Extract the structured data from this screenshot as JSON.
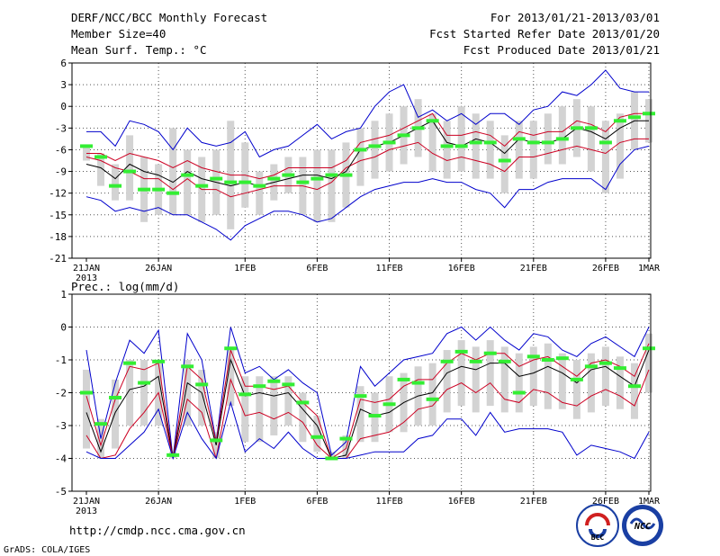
{
  "header": {
    "title_left": "DERF/NCC/BCC Monthly Forecast",
    "member_size": "Member Size=40",
    "variable": "Mean Surf. Temp.: °C",
    "title_right": "For 2013/01/21-2013/03/01",
    "started_refer": "Fcst Started Refer Date 2013/01/20",
    "produced": "Fcst Produced Date 2013/01/21"
  },
  "footer": {
    "url": "http://cmdp.ncc.cma.gov.cn",
    "grads": "GrADS: COLA/IGES",
    "logo_bcc": "BCC",
    "logo_ncc": "NCC"
  },
  "colors": {
    "envelope": "#0000cc",
    "quartile": "#cc0022",
    "median": "#000000",
    "box": "#d3d3d3",
    "obs": "#33ee33",
    "grid": "#555555"
  },
  "chart_data": [
    {
      "type": "line",
      "name": "temperature",
      "title": "",
      "xlabel": "",
      "ylabel": "Mean Surf. Temp.: °C",
      "ylim": [
        -21,
        7
      ],
      "yticks": [
        6,
        3,
        0,
        -3,
        -6,
        -9,
        -12,
        -15,
        -18,
        -21
      ],
      "ytick_labels": [
        "6",
        "3",
        "0",
        "-3",
        "-6",
        "-9",
        "-12",
        "-15",
        "-18",
        "-21"
      ],
      "xticks": [
        {
          "day": 0,
          "label": "21JAN",
          "sub": "2013"
        },
        {
          "day": 5,
          "label": "26JAN"
        },
        {
          "day": 11,
          "label": "1FEB"
        },
        {
          "day": 16,
          "label": "6FEB"
        },
        {
          "day": 21,
          "label": "11FEB"
        },
        {
          "day": 26,
          "label": "16FEB"
        },
        {
          "day": 31,
          "label": "21FEB"
        },
        {
          "day": 36,
          "label": "26FEB"
        },
        {
          "day": 39,
          "label": "1MAR"
        }
      ],
      "series": [
        {
          "name": "max",
          "values": [
            -12.5,
            -13,
            -14.5,
            -14,
            -14.5,
            -14,
            -15,
            -15,
            -16,
            -17,
            -18.5,
            -16.5,
            -15.5,
            -14.5,
            -14.5,
            -15,
            -16,
            -15.5,
            -14,
            -12.5,
            -11.5,
            -11,
            -10.5,
            -10.5,
            -10,
            -10.5,
            -10.5,
            -11.5,
            -12,
            -14,
            -11.5,
            -11.5,
            -10.5,
            -10,
            -10,
            -10,
            -11.5,
            -8,
            -6,
            -5.5
          ]
        },
        {
          "name": "upper_quartile",
          "values": [
            -7,
            -7.5,
            -8.5,
            -9,
            -10,
            -10,
            -11.5,
            -10,
            -11.5,
            -11.5,
            -12.5,
            -12,
            -11.5,
            -11,
            -11,
            -11,
            -11.5,
            -10.5,
            -8.5,
            -7.5,
            -7,
            -6,
            -5.5,
            -5,
            -6.5,
            -7.5,
            -7,
            -7.5,
            -8,
            -9,
            -7,
            -7,
            -6.5,
            -6,
            -5.5,
            -6,
            -6.5,
            -5,
            -4.5,
            -4.5
          ]
        },
        {
          "name": "median",
          "values": [
            -8,
            -8.5,
            -10,
            -8,
            -9,
            -9.5,
            -10.5,
            -9,
            -10,
            -10.5,
            -11,
            -10.5,
            -11,
            -10.5,
            -10,
            -9.5,
            -9.5,
            -10,
            -9,
            -6,
            -5.5,
            -5,
            -4,
            -3,
            -2,
            -5,
            -5.5,
            -4.5,
            -5,
            -6.5,
            -4.5,
            -5,
            -5,
            -4.5,
            -3,
            -3.5,
            -4.5,
            -3,
            -2,
            -2
          ]
        },
        {
          "name": "lower_quartile",
          "values": [
            -6.5,
            -6.5,
            -7.5,
            -6.5,
            -7,
            -7.5,
            -8.5,
            -7.5,
            -8.5,
            -9,
            -9.5,
            -9.5,
            -10,
            -9.5,
            -8.5,
            -8.5,
            -8.5,
            -8.5,
            -7.5,
            -5,
            -4.5,
            -4,
            -3,
            -2,
            -1,
            -4,
            -4,
            -3.5,
            -4,
            -5.5,
            -3.5,
            -4,
            -3.5,
            -3.5,
            -2,
            -2.5,
            -3.5,
            -1.5,
            -1,
            -1
          ]
        },
        {
          "name": "min",
          "values": [
            -3.5,
            -3.5,
            -5.5,
            -2,
            -2.5,
            -3.5,
            -6,
            -3,
            -5,
            -5.5,
            -5,
            -3.5,
            -7,
            -6,
            -5.5,
            -4,
            -2.5,
            -4.5,
            -3.5,
            -3,
            0,
            2,
            3,
            -1.5,
            -0.5,
            -2,
            -1,
            -2.5,
            -1,
            -1,
            -2.5,
            -0.5,
            0,
            2,
            1.5,
            3,
            5,
            2.5,
            2,
            2
          ]
        }
      ],
      "boxes": [
        {
          "lo": -7.5,
          "hi": -5.5
        },
        {
          "lo": -11,
          "hi": -6.5
        },
        {
          "lo": -13,
          "hi": -8
        },
        {
          "lo": -13,
          "hi": -4
        },
        {
          "lo": -16,
          "hi": -7
        },
        {
          "lo": -15,
          "hi": -8
        },
        {
          "lo": -15,
          "hi": -3
        },
        {
          "lo": -15,
          "hi": -6
        },
        {
          "lo": -16,
          "hi": -7
        },
        {
          "lo": -15,
          "hi": -6
        },
        {
          "lo": -17,
          "hi": -2
        },
        {
          "lo": -14,
          "hi": -5
        },
        {
          "lo": -15,
          "hi": -9
        },
        {
          "lo": -13,
          "hi": -8
        },
        {
          "lo": -12,
          "hi": -7
        },
        {
          "lo": -15,
          "hi": -7
        },
        {
          "lo": -16,
          "hi": -6
        },
        {
          "lo": -16,
          "hi": -6
        },
        {
          "lo": -14,
          "hi": -5
        },
        {
          "lo": -11,
          "hi": -3
        },
        {
          "lo": -10,
          "hi": -2
        },
        {
          "lo": -9,
          "hi": -1
        },
        {
          "lo": -8,
          "hi": 0
        },
        {
          "lo": -7,
          "hi": 1
        },
        {
          "lo": -9,
          "hi": -1
        },
        {
          "lo": -10,
          "hi": -2
        },
        {
          "lo": -9,
          "hi": 0
        },
        {
          "lo": -10,
          "hi": -1
        },
        {
          "lo": -10,
          "hi": -2
        },
        {
          "lo": -12,
          "hi": -4
        },
        {
          "lo": -10,
          "hi": -2
        },
        {
          "lo": -10,
          "hi": -2
        },
        {
          "lo": -8,
          "hi": -1
        },
        {
          "lo": -8,
          "hi": 0
        },
        {
          "lo": -7,
          "hi": 1
        },
        {
          "lo": -9,
          "hi": 0
        },
        {
          "lo": -12,
          "hi": -2
        },
        {
          "lo": -10,
          "hi": -1
        },
        {
          "lo": -6,
          "hi": 2
        },
        {
          "lo": -5,
          "hi": 1
        }
      ],
      "obs": [
        -5.5,
        -7,
        -11,
        -9,
        -11.5,
        -11.5,
        -12,
        -9.5,
        -11,
        -10,
        -10.5,
        -10.5,
        -11,
        -10,
        -9.5,
        -10.5,
        -10,
        -9.5,
        -9.5,
        -6,
        -5.5,
        -5,
        -4,
        -3,
        -2,
        -5.5,
        -5.5,
        -5,
        -5,
        -7.5,
        -4.5,
        -5,
        -5,
        -4.5,
        -3,
        -3,
        -5,
        -2,
        -1.5,
        -1
      ]
    },
    {
      "type": "line",
      "name": "precipitation",
      "title": "",
      "xlabel": "",
      "ylabel": "Prec.: log(mm/d)",
      "ylim": [
        -5,
        1
      ],
      "yticks": [
        1,
        0,
        -1,
        -2,
        -3,
        -4,
        -5
      ],
      "ytick_labels": [
        "1",
        "0",
        "-1",
        "-2",
        "-3",
        "-4",
        "-5"
      ],
      "xticks": [
        {
          "day": 0,
          "label": "21JAN",
          "sub": "2013"
        },
        {
          "day": 5,
          "label": "26JAN"
        },
        {
          "day": 11,
          "label": "1FEB"
        },
        {
          "day": 16,
          "label": "6FEB"
        },
        {
          "day": 21,
          "label": "11FEB"
        },
        {
          "day": 26,
          "label": "16FEB"
        },
        {
          "day": 31,
          "label": "21FEB"
        },
        {
          "day": 36,
          "label": "26FEB"
        },
        {
          "day": 39,
          "label": "1MAR"
        }
      ],
      "series": [
        {
          "name": "max",
          "values": [
            -0.7,
            -3.4,
            -1.7,
            -0.4,
            -0.8,
            -0.1,
            -4,
            -0.2,
            -1,
            -3.5,
            0,
            -1.4,
            -1.2,
            -1.6,
            -1.3,
            -1.7,
            -2,
            -3.9,
            -3.5,
            -1.2,
            -1.8,
            -1.4,
            -1,
            -0.9,
            -0.8,
            -0.2,
            0,
            -0.4,
            0,
            -0.4,
            -0.7,
            -0.2,
            -0.3,
            -0.7,
            -0.9,
            -0.5,
            -0.3,
            -0.6,
            -0.9,
            0
          ]
        },
        {
          "name": "upper_quartile",
          "values": [
            -2.1,
            -3.6,
            -2.2,
            -1.2,
            -1.3,
            -1.1,
            -4,
            -1.2,
            -1.6,
            -3.5,
            -0.7,
            -1.8,
            -1.8,
            -1.9,
            -1.8,
            -2.3,
            -2.7,
            -4,
            -3.7,
            -2.2,
            -2.3,
            -2.2,
            -1.8,
            -1.6,
            -1.6,
            -1.1,
            -0.8,
            -1,
            -0.8,
            -0.8,
            -1.2,
            -1,
            -0.9,
            -1.2,
            -1.5,
            -1.1,
            -1,
            -1.2,
            -1.5,
            -0.5
          ]
        },
        {
          "name": "median",
          "values": [
            -2.6,
            -3.8,
            -2.6,
            -1.9,
            -1.8,
            -1.5,
            -4,
            -1.7,
            -2,
            -3.6,
            -1,
            -2.1,
            -2,
            -2.1,
            -2,
            -2.5,
            -3,
            -4,
            -3.9,
            -2.5,
            -2.7,
            -2.6,
            -2.3,
            -2.1,
            -2,
            -1.4,
            -1.2,
            -1.3,
            -1.1,
            -1.1,
            -1.5,
            -1.4,
            -1.2,
            -1.4,
            -1.7,
            -1.3,
            -1.2,
            -1.5,
            -1.8,
            -0.7
          ]
        },
        {
          "name": "lower_quartile",
          "values": [
            -3.3,
            -4,
            -3.9,
            -3.1,
            -2.6,
            -2,
            -4,
            -2.2,
            -2.6,
            -4,
            -1.6,
            -2.7,
            -2.6,
            -2.8,
            -2.6,
            -2.9,
            -3.6,
            -4,
            -4,
            -3.4,
            -3.3,
            -3.2,
            -2.9,
            -2.5,
            -2.4,
            -1.9,
            -1.7,
            -2,
            -1.7,
            -2.2,
            -2.3,
            -1.9,
            -2,
            -2.3,
            -2.4,
            -2.1,
            -1.9,
            -2.1,
            -2.4,
            -1.3
          ]
        },
        {
          "name": "min",
          "values": [
            -3.8,
            -4,
            -4,
            -3.6,
            -3.2,
            -2.5,
            -4,
            -2.6,
            -3.4,
            -4,
            -2.3,
            -3.8,
            -3.4,
            -3.7,
            -3.2,
            -3.7,
            -4,
            -4,
            -4,
            -3.9,
            -3.8,
            -3.8,
            -3.8,
            -3.4,
            -3.3,
            -2.8,
            -2.8,
            -3.3,
            -2.6,
            -3.2,
            -3.1,
            -3.1,
            -3.1,
            -3.2,
            -3.9,
            -3.6,
            -3.7,
            -3.8,
            -4,
            -3.2
          ]
        }
      ],
      "boxes": [
        {
          "lo": -3.7,
          "hi": -1.3
        },
        {
          "lo": -4,
          "hi": -2.8
        },
        {
          "lo": -3.7,
          "hi": -1.6
        },
        {
          "lo": -3,
          "hi": -1
        },
        {
          "lo": -3,
          "hi": -1
        },
        {
          "lo": -3,
          "hi": -1
        },
        {
          "lo": -4,
          "hi": -3.8
        },
        {
          "lo": -3,
          "hi": -1
        },
        {
          "lo": -3,
          "hi": -1.3
        },
        {
          "lo": -4,
          "hi": -3.2
        },
        {
          "lo": -2.4,
          "hi": -0.6
        },
        {
          "lo": -3.5,
          "hi": -1.5
        },
        {
          "lo": -3.5,
          "hi": -1.5
        },
        {
          "lo": -3.3,
          "hi": -1.5
        },
        {
          "lo": -3,
          "hi": -1.5
        },
        {
          "lo": -3.5,
          "hi": -2
        },
        {
          "lo": -3.8,
          "hi": -2.7
        },
        {
          "lo": -4,
          "hi": -3.8
        },
        {
          "lo": -4,
          "hi": -3.3
        },
        {
          "lo": -3.5,
          "hi": -1.8
        },
        {
          "lo": -3.5,
          "hi": -2
        },
        {
          "lo": -3.2,
          "hi": -1.5
        },
        {
          "lo": -3.2,
          "hi": -1.4
        },
        {
          "lo": -3,
          "hi": -1.2
        },
        {
          "lo": -3,
          "hi": -1.1
        },
        {
          "lo": -2.6,
          "hi": -0.7
        },
        {
          "lo": -2.4,
          "hi": -0.4
        },
        {
          "lo": -2.6,
          "hi": -0.6
        },
        {
          "lo": -2.4,
          "hi": -0.4
        },
        {
          "lo": -2.6,
          "hi": -0.6
        },
        {
          "lo": -2.6,
          "hi": -0.8
        },
        {
          "lo": -2.4,
          "hi": -0.6
        },
        {
          "lo": -2.5,
          "hi": -0.5
        },
        {
          "lo": -2.5,
          "hi": -0.8
        },
        {
          "lo": -2.8,
          "hi": -1
        },
        {
          "lo": -2.6,
          "hi": -0.8
        },
        {
          "lo": -2.4,
          "hi": -0.6
        },
        {
          "lo": -2.5,
          "hi": -0.9
        },
        {
          "lo": -2.8,
          "hi": -1.1
        },
        {
          "lo": -2,
          "hi": -0.2
        }
      ],
      "obs": [
        -2,
        -2.95,
        -2.15,
        -1.1,
        -1.7,
        -1.05,
        -3.9,
        -1.2,
        -1.75,
        -3.45,
        -0.65,
        -2.05,
        -1.8,
        -1.65,
        -1.75,
        -2.3,
        -3.35,
        -4,
        -3.4,
        -2.1,
        -2.7,
        -2.35,
        -1.6,
        -1.7,
        -2.2,
        -1.05,
        -0.75,
        -1.05,
        -0.8,
        -1.05,
        -2,
        -0.9,
        -1,
        -0.95,
        -1.6,
        -1.2,
        -1.1,
        -1.25,
        -1.8,
        -0.65
      ]
    }
  ]
}
